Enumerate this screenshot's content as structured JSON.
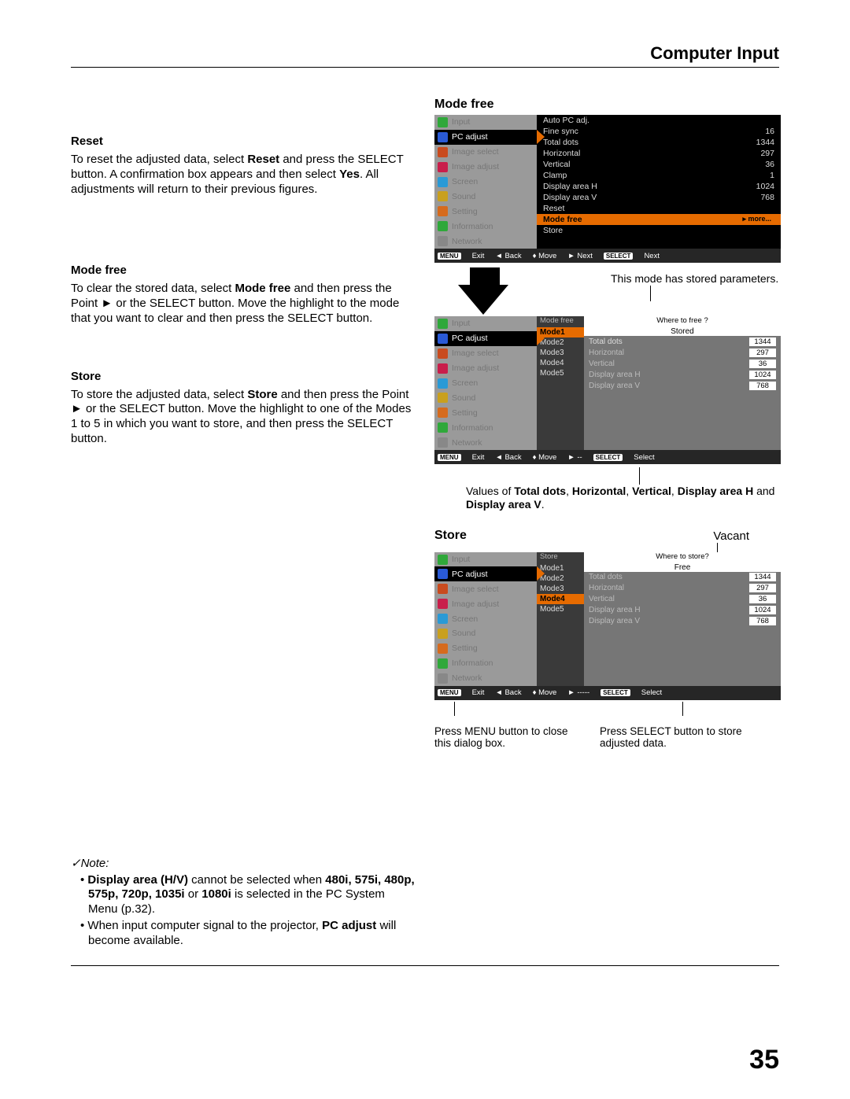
{
  "page": {
    "header_title": "Computer Input",
    "page_number": "35"
  },
  "sections": {
    "reset": {
      "heading": "Reset",
      "text_1": "To reset the adjusted data, select ",
      "text_bold1": "Reset",
      "text_2": " and press the SELECT button. A confirmation box appears and then select ",
      "text_bold2": "Yes",
      "text_3": ". All adjustments will return to their previous figures."
    },
    "modefree": {
      "heading": "Mode free",
      "text_1": "To clear the stored data, select ",
      "text_bold1": "Mode free",
      "text_2": " and then press the Point ► or the SELECT button. Move the highlight to the mode that you want to clear and then press the SELECT button."
    },
    "store": {
      "heading": "Store",
      "text_1": "To store the adjusted data, select ",
      "text_bold1": "Store",
      "text_2": " and then press the Point ► or the SELECT button. Move the highlight to one of the Modes 1 to 5 in which you want to store, and then press the SELECT button."
    },
    "note": {
      "heading": "✓Note:",
      "items": [
        {
          "t1": "",
          "b1": "Display area (H/V)",
          "t2": " cannot be selected when ",
          "b2": "480i, 575i, 480p, 575p, 720p, 1035i",
          "t3": " or ",
          "b3": "1080i",
          "t4": " is selected in the PC System Menu (p.32)."
        },
        {
          "t1": "When input computer signal to the projector, ",
          "b1": "PC adjust",
          "t2": " will become available.",
          "b2": "",
          "t3": "",
          "b3": "",
          "t4": ""
        }
      ]
    }
  },
  "right": {
    "modefree_label": "Mode free",
    "store_label": "Store",
    "vacant_label": "Vacant",
    "stored_note": "This mode has stored parameters.",
    "values_note_1": "Values of ",
    "values_note_b1": "Total dots",
    "values_note_2": ", ",
    "values_note_b2": "Horizontal",
    "values_note_3": ", ",
    "values_note_b3": "Vertical",
    "values_note_4": ", ",
    "values_note_b4": "Display area H",
    "values_note_5": " and ",
    "values_note_b5": "Display area V",
    "values_note_6": ".",
    "press_menu": "Press MENU button to close this dialog box.",
    "press_select": "Press SELECT button to store adjusted data."
  },
  "osd": {
    "sidebar_items": [
      {
        "label": "Input",
        "icon": "#2fa83a"
      },
      {
        "label": "PC adjust",
        "icon": "#2a5ad6"
      },
      {
        "label": "Image select",
        "icon": "#c94b1e"
      },
      {
        "label": "Image adjust",
        "icon": "#c91e4b"
      },
      {
        "label": "Screen",
        "icon": "#2a9ad6"
      },
      {
        "label": "Sound",
        "icon": "#c9a01e"
      },
      {
        "label": "Setting",
        "icon": "#d66b1e"
      },
      {
        "label": "Information",
        "icon": "#2fa83a"
      },
      {
        "label": "Network",
        "icon": "#888"
      }
    ],
    "panel1_kv": [
      {
        "k": "Auto PC adj.",
        "v": ""
      },
      {
        "k": "Fine sync",
        "v": "16"
      },
      {
        "k": "Total dots",
        "v": "1344"
      },
      {
        "k": "Horizontal",
        "v": "297"
      },
      {
        "k": "Vertical",
        "v": "36"
      },
      {
        "k": "Clamp",
        "v": "1"
      },
      {
        "k": "Display area H",
        "v": "1024"
      },
      {
        "k": "Display area V",
        "v": "768"
      },
      {
        "k": "Reset",
        "v": ""
      }
    ],
    "panel1_highlight": {
      "k": "Mode free",
      "more": "more..."
    },
    "panel1_store": {
      "k": "Store",
      "v": ""
    },
    "panel2_header_k": "Mode free",
    "panel2_header_q": "Where to free ?",
    "panel2_stored": "Stored",
    "modes": [
      "Mode1",
      "Mode2",
      "Mode3",
      "Mode4",
      "Mode5"
    ],
    "panel2_right": [
      {
        "k": "Total dots",
        "v": "1344"
      },
      {
        "k": "Horizontal",
        "v": "297"
      },
      {
        "k": "Vertical",
        "v": "36"
      },
      {
        "k": "Display area H",
        "v": "1024"
      },
      {
        "k": "Display area V",
        "v": "768"
      }
    ],
    "panel3_header_k": "Store",
    "panel3_header_q": "Where to store?",
    "panel3_free": "Free",
    "panel3_right": [
      {
        "k": "Total dots",
        "v": "1344"
      },
      {
        "k": "Horizontal",
        "v": "297"
      },
      {
        "k": "Vertical",
        "v": "36"
      },
      {
        "k": "Display area H",
        "v": "1024"
      },
      {
        "k": "Display area V",
        "v": "768"
      }
    ],
    "footer": {
      "menu": "MENU",
      "exit": "Exit",
      "back": "Back",
      "move": "Move",
      "next": "Next",
      "select": "SELECT",
      "sel_word": "Select",
      "dashes": "-----"
    }
  }
}
